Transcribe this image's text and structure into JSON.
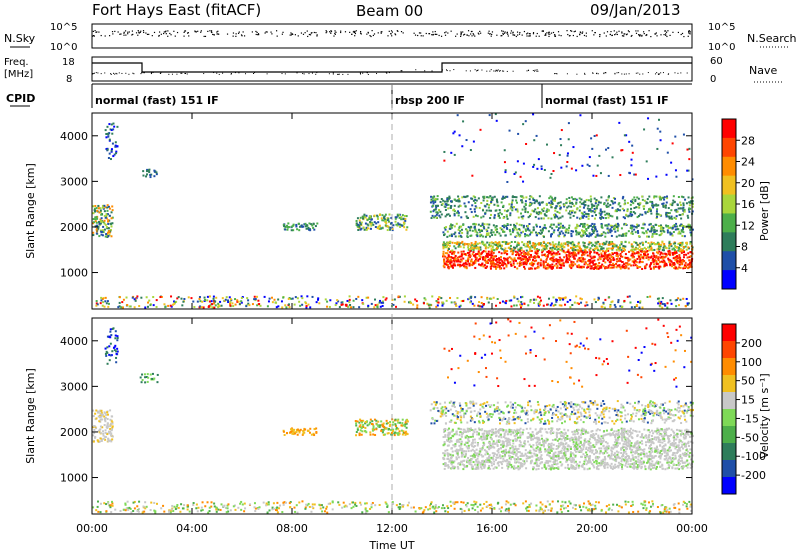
{
  "header": {
    "station": "Fort Hays East (fitACF)",
    "beam": "Beam 00",
    "date": "09/Jan/2013"
  },
  "noise_panel": {
    "left_label": "N.Sky",
    "right_label": "N.Search",
    "left_ticks": [
      "10^5",
      "10^0"
    ],
    "right_ticks": [
      "10^5",
      "10^0"
    ]
  },
  "freq_panel": {
    "left_label_1": "Freq.",
    "left_label_2": "[MHz]",
    "left_ticks": [
      "18",
      "8"
    ],
    "right_label": "Nave",
    "right_ticks": [
      "60",
      "0"
    ]
  },
  "cpid": {
    "label": "CPID",
    "segments": [
      {
        "name": "normal (fast) 151 IF",
        "start": 0
      },
      {
        "name": "rbsp 200 IF",
        "start": 12
      },
      {
        "name": "normal (fast) 151 IF",
        "start": 18
      }
    ]
  },
  "colors": {
    "power": [
      "#0000ff",
      "#1f4fa8",
      "#2e7d5b",
      "#4daf4a",
      "#a9d63b",
      "#f0c020",
      "#ff8c00",
      "#ff4500",
      "#ff0000"
    ],
    "velocity": [
      "#0000ff",
      "#1f4fa8",
      "#2e7d5b",
      "#4daf4a",
      "#7ed957",
      "#c8c8c8",
      "#f0c020",
      "#ff8c00",
      "#ff4500",
      "#ff0000"
    ],
    "ground_scatter": "#c8c8c8"
  },
  "chart_data": [
    {
      "type": "heatmap",
      "name": "Power",
      "xlabel": "",
      "ylabel": "Slant Range [km]",
      "xlim": [
        0,
        24
      ],
      "ylim": [
        200,
        4500
      ],
      "yticks": [
        1000,
        2000,
        3000,
        4000
      ],
      "colorbar": {
        "label": "Power [dB]",
        "range": [
          0,
          32
        ],
        "ticks": [
          4,
          8,
          12,
          16,
          20,
          24,
          28
        ]
      }
    },
    {
      "type": "heatmap",
      "name": "Velocity",
      "xlabel": "Time UT",
      "ylabel": "Slant Range [km]",
      "xlim": [
        0,
        24
      ],
      "ylim": [
        200,
        4500
      ],
      "yticks": [
        1000,
        2000,
        3000,
        4000
      ],
      "xticks": [
        "00:00",
        "04:00",
        "08:00",
        "12:00",
        "16:00",
        "20:00",
        "00:00"
      ],
      "colorbar": {
        "label": "Velocity [m s⁻¹]",
        "ticks": [
          "200",
          "100",
          "50",
          "15",
          "-15",
          "-50",
          "-100",
          "-200"
        ]
      }
    }
  ]
}
